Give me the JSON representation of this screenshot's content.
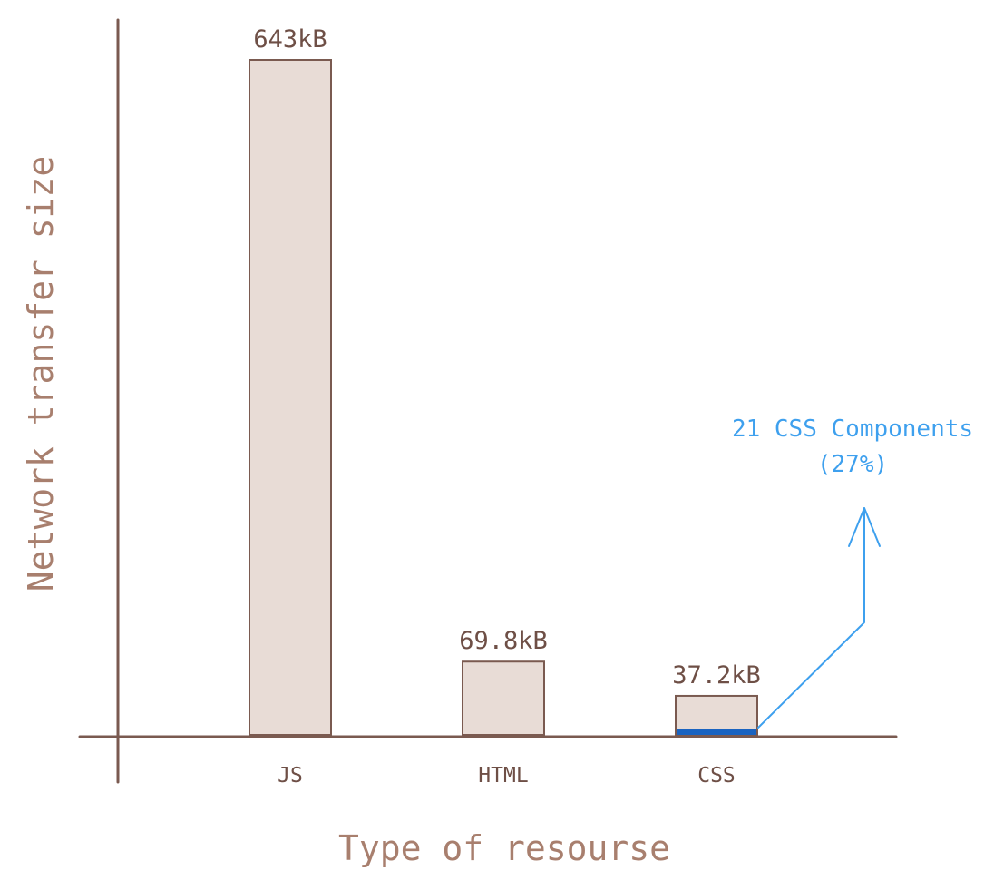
{
  "chart_data": {
    "type": "bar",
    "title": "",
    "xlabel": "Type of resourse",
    "ylabel": "Network transfer size",
    "ylim": [
      0,
      643
    ],
    "grid": false,
    "categories": [
      "JS",
      "HTML",
      "CSS"
    ],
    "values": [
      643,
      69.8,
      37.2
    ],
    "value_unit": "kB",
    "data_labels": [
      "643kB",
      "69.8kB",
      "37.2kB"
    ],
    "highlight": {
      "category": "CSS",
      "fraction": 0.27,
      "annotation_lines": [
        "21 CSS Components",
        "(27%)"
      ],
      "color": "#1a63c0"
    },
    "colors": {
      "bar_fill": "#e8dcd6",
      "bar_stroke": "#7a5a50",
      "axis": "#7a5a50",
      "annotation": "#3ea0ee"
    }
  }
}
